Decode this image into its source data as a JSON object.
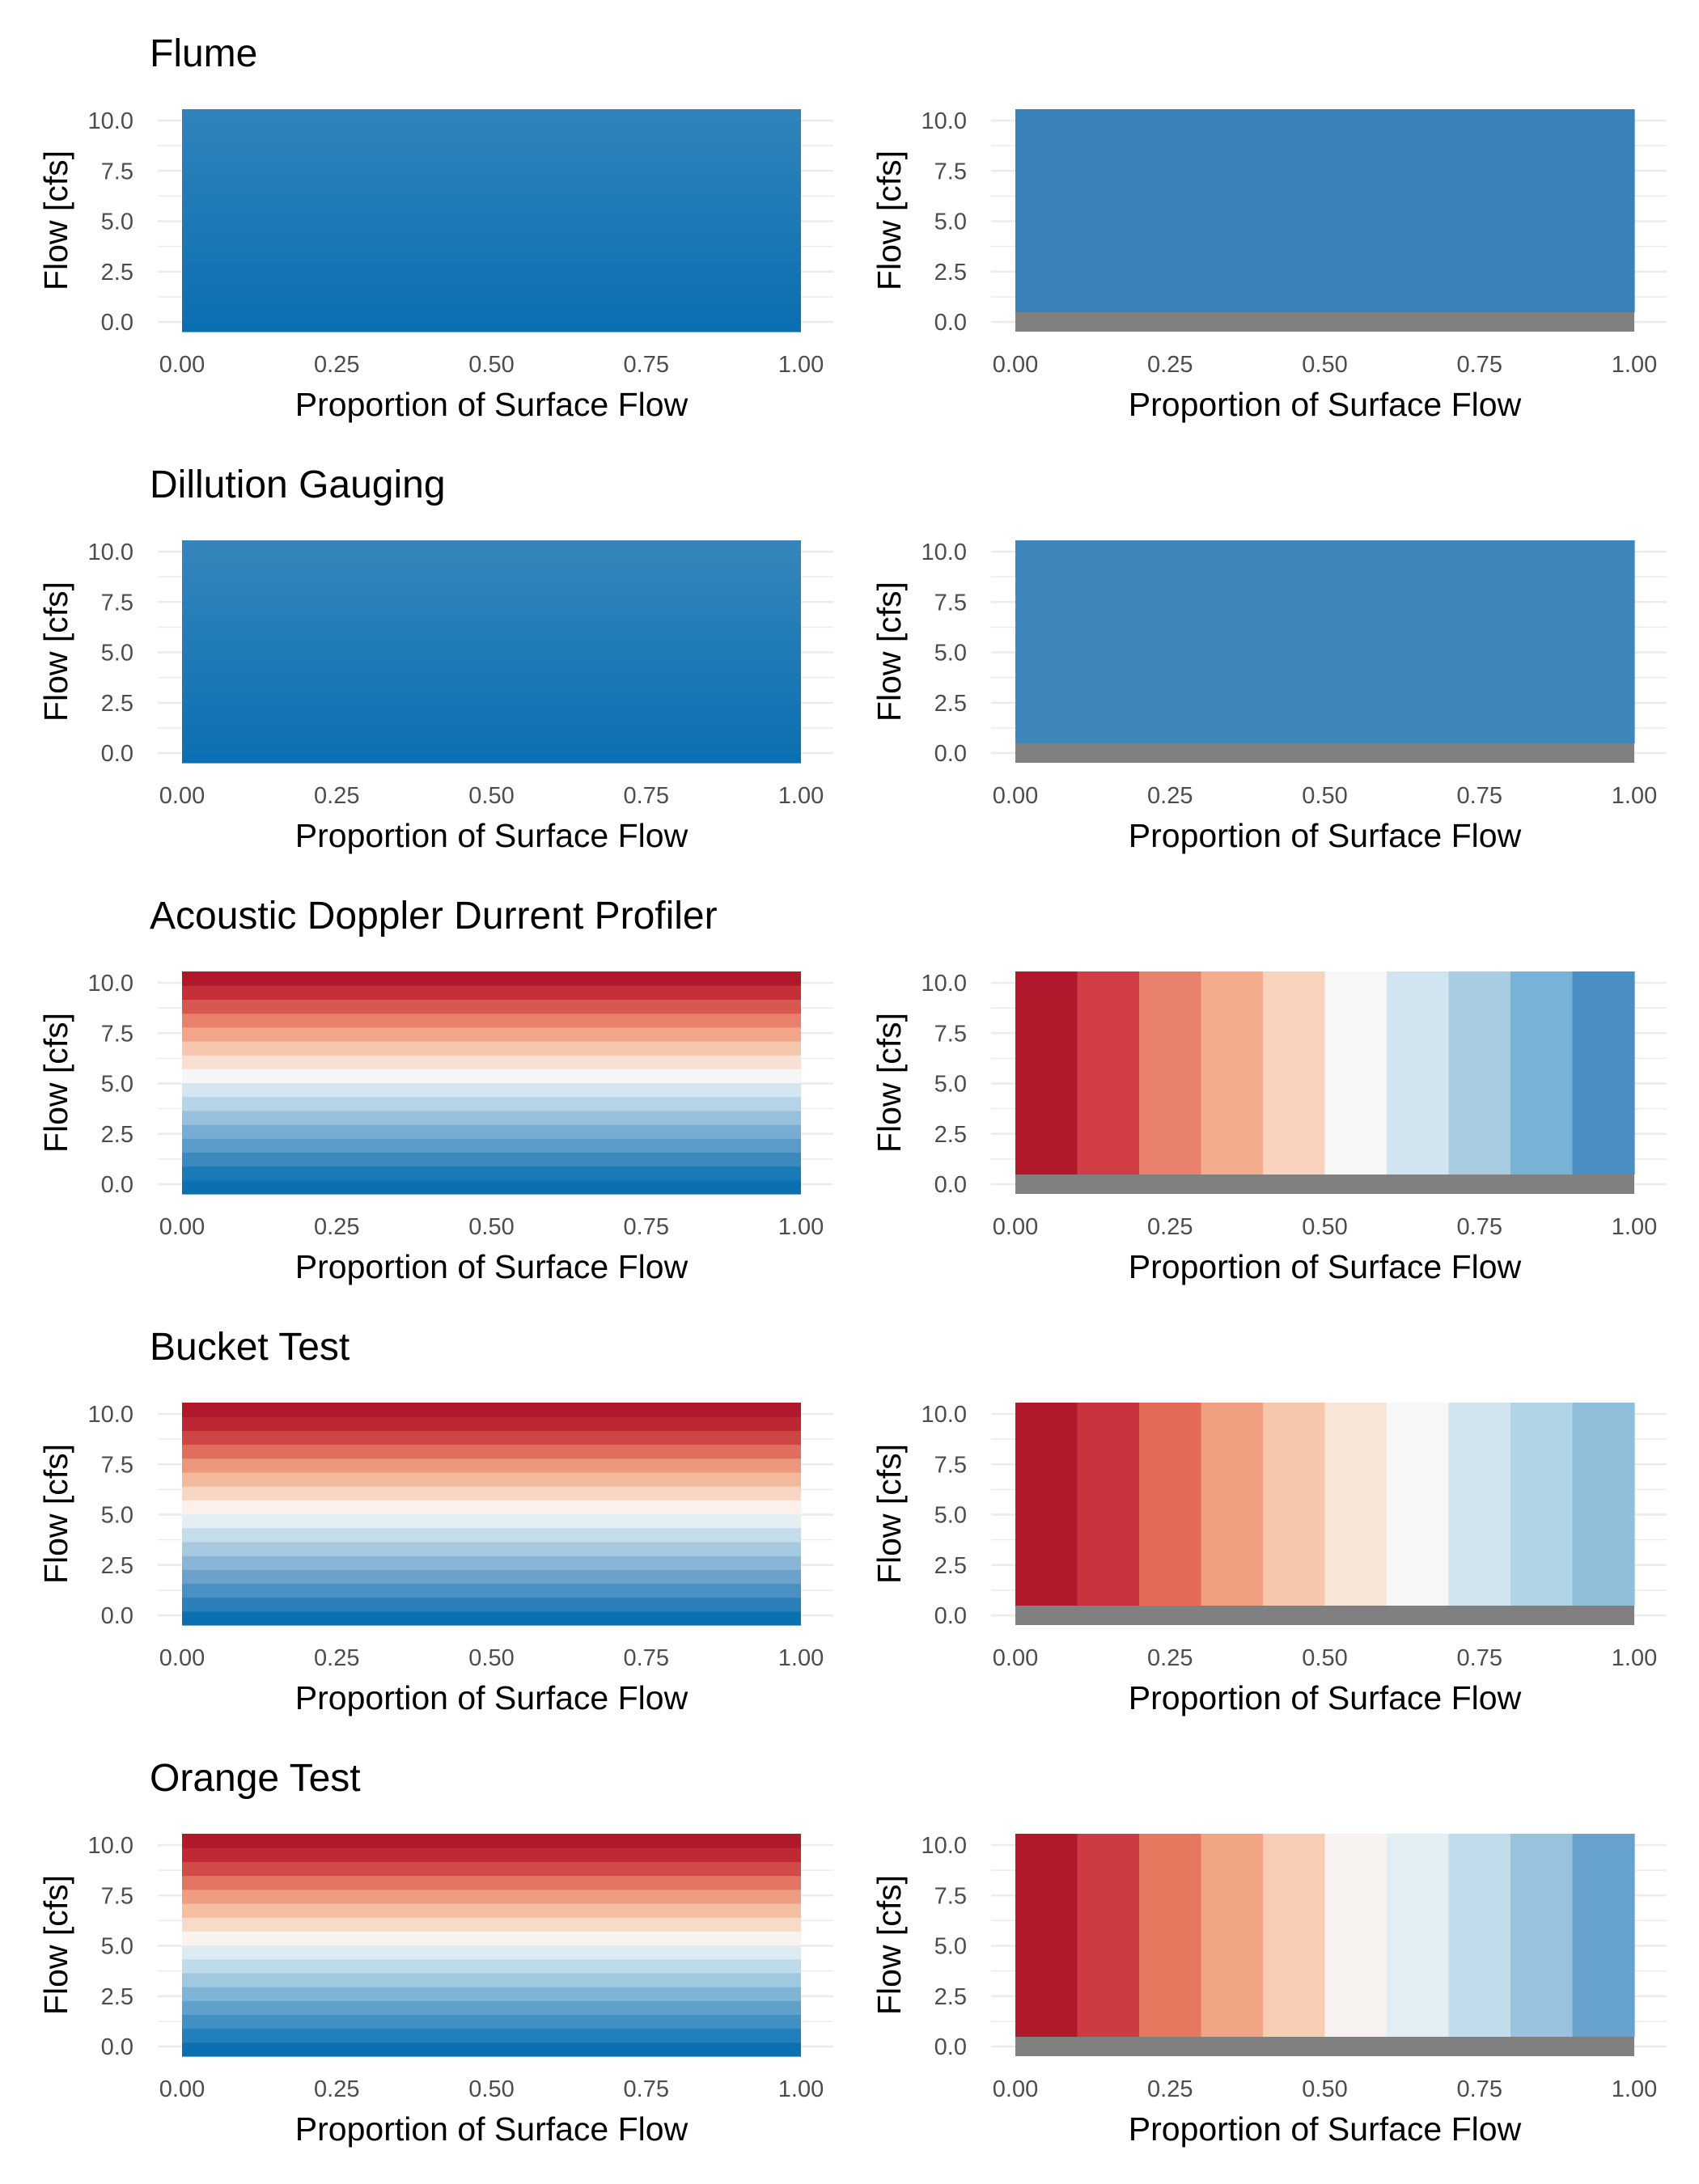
{
  "colors": {
    "heatmap_scale": [
      "#b2182b",
      "#ef8a62",
      "#fddbc7",
      "#f7f7f7",
      "#d1e5f0",
      "#67a9cf",
      "#2166ac"
    ],
    "na_color": "#808080",
    "grid_color": "#ebebeb",
    "background": "#ffffff"
  },
  "panel_labels": {
    "xlabel": "Proportion of Surface Flow",
    "ylabel": "Flow [cfs]"
  },
  "chart_data": [
    {
      "type": "heatmap",
      "title": "Flume",
      "xlabel": "Proportion of Surface Flow",
      "ylabel": "Flow [cfs]",
      "xlim": [
        0,
        1
      ],
      "ylim": [
        0,
        10
      ],
      "x_ticks": [
        "0.00",
        "0.25",
        "0.50",
        "0.75",
        "1.00"
      ],
      "y_ticks": [
        "0.0",
        "2.5",
        "5.0",
        "7.5",
        "10.0"
      ],
      "grid": true,
      "panels": [
        {
          "colors": [
            "#0b70b2",
            "#0c70b2",
            "#0e71b2",
            "#1072b3",
            "#1173b3",
            "#1374b4",
            "#1575b4",
            "#1776b4",
            "#1877b5",
            "#1a78b5",
            "#1c79b6",
            "#1e7ab6",
            "#207ab6",
            "#217bb7",
            "#237cb7",
            "#257db8",
            "#277eb8",
            "#297fb8",
            "#2b80b9",
            "#2d81b9",
            "#2e82ba",
            "#3083ba"
          ]
        },
        {
          "colors": [
            "#808080",
            "#3881bb",
            "#3881bb",
            "#3881bb",
            "#3881bb",
            "#3881bb",
            "#3881bb",
            "#3881bb",
            "#3881bb",
            "#3881bb",
            "#3881bb",
            "#3881bb",
            "#3881bb",
            "#3881bb",
            "#3881bb",
            "#3881bb",
            "#3881bb",
            "#3881bb",
            "#3881bb",
            "#3881bb",
            "#3881bb",
            "#3881bb"
          ]
        }
      ]
    },
    {
      "type": "heatmap",
      "title": "Dillution Gauging",
      "xlabel": "Proportion of Surface Flow",
      "ylabel": "Flow [cfs]",
      "xlim": [
        0,
        1
      ],
      "ylim": [
        0,
        10
      ],
      "x_ticks": [
        "0.00",
        "0.25",
        "0.50",
        "0.75",
        "1.00"
      ],
      "y_ticks": [
        "0.0",
        "2.5",
        "5.0",
        "7.5",
        "10.0"
      ],
      "grid": true,
      "panels": [
        {
          "colors": [
            "#0b70b2",
            "#0d71b2",
            "#0f72b3",
            "#1173b3",
            "#1374b4",
            "#1575b4",
            "#1776b4",
            "#1977b5",
            "#1b78b5",
            "#1d79b6",
            "#1f7ab6",
            "#217bb7",
            "#237cb7",
            "#257db7",
            "#277eb8",
            "#297fb8",
            "#2b80b9",
            "#2d81b9",
            "#2f82ba",
            "#3183ba",
            "#3384bb",
            "#3585bb"
          ]
        },
        {
          "colors": [
            "#808080",
            "#3f86bc",
            "#3f86bc",
            "#3f86bc",
            "#3f86bc",
            "#3f86bc",
            "#3f86bc",
            "#3f86bc",
            "#3f86bc",
            "#3f86bc",
            "#3f86bc",
            "#3f86bc",
            "#3f86bc",
            "#3f86bc",
            "#3f86bc",
            "#3f86bc",
            "#3f86bc",
            "#3f86bc",
            "#3f86bc",
            "#3f86bc",
            "#3f86bc",
            "#3f86bc"
          ]
        }
      ]
    },
    {
      "type": "heatmap",
      "title": "Acoustic Doppler Durrent Profiler",
      "xlabel": "Proportion of Surface Flow",
      "ylabel": "Flow [cfs]",
      "xlim": [
        0,
        1
      ],
      "ylim": [
        0,
        10
      ],
      "x_ticks": [
        "0.00",
        "0.25",
        "0.50",
        "0.75",
        "1.00"
      ],
      "y_ticks": [
        "0.0",
        "2.5",
        "5.0",
        "7.5",
        "10.0"
      ],
      "grid": true,
      "panels": [
        {
          "colors": [
            "#0b70b2",
            "#1a7ab7",
            "#3a8ac0",
            "#5a9bca",
            "#79acd3",
            "#98c0dd",
            "#b5d4e7",
            "#d4e6f0",
            "#f4f6f7",
            "#f9e0d4",
            "#f6c6ae",
            "#f2a689",
            "#e8806b",
            "#d65850",
            "#c42f38",
            "#b2182b"
          ]
        },
        {
          "colors": [
            "#808080",
            "#b2182b",
            "#d23c44",
            "#e8806b",
            "#f4ad8c",
            "#f9d2bd",
            "#f7f7f7",
            "#d1e5f0",
            "#a8cde3",
            "#78b2d6",
            "#4a8fc4"
          ]
        }
      ]
    },
    {
      "type": "heatmap",
      "title": "Bucket Test",
      "xlabel": "Proportion of Surface Flow",
      "ylabel": "Flow [cfs]",
      "xlim": [
        0,
        1
      ],
      "ylim": [
        0,
        10
      ],
      "x_ticks": [
        "0.00",
        "0.25",
        "0.50",
        "0.75",
        "1.00"
      ],
      "y_ticks": [
        "0.0",
        "2.5",
        "5.0",
        "7.5",
        "10.0"
      ],
      "grid": true,
      "panels": [
        {
          "colors": [
            "#0b70b2",
            "#2b80b9",
            "#4a91c3",
            "#6aa2cc",
            "#8ab5d6",
            "#a8cae1",
            "#c5ddea",
            "#e4eff4",
            "#fbf1ea",
            "#f8d6c3",
            "#f4b99b",
            "#ec977c",
            "#df6e5d",
            "#cd4545",
            "#bd2633",
            "#b2182b"
          ]
        },
        {
          "colors": [
            "#808080",
            "#b2182b",
            "#c9323c",
            "#e36a57",
            "#ef9f7f",
            "#f7c7ab",
            "#f9e4d8",
            "#f7f7f7",
            "#d1e5f0",
            "#b0d3e6",
            "#8fbfdb"
          ]
        }
      ]
    },
    {
      "type": "heatmap",
      "title": "Orange Test",
      "xlabel": "Proportion of Surface Flow",
      "ylabel": "Flow [cfs]",
      "xlim": [
        0,
        1
      ],
      "ylim": [
        0,
        10
      ],
      "x_ticks": [
        "0.00",
        "0.25",
        "0.50",
        "0.75",
        "1.00"
      ],
      "y_ticks": [
        "0.0",
        "2.5",
        "5.0",
        "7.5",
        "10.0"
      ],
      "grid": true,
      "panels": [
        {
          "colors": [
            "#0b70b2",
            "#2180bb",
            "#4090c3",
            "#60a1cc",
            "#80b4d6",
            "#a0c8e0",
            "#bfdbe9",
            "#ddecf3",
            "#f9f3ee",
            "#f8dac9",
            "#f4bea1",
            "#ee9d80",
            "#e27462",
            "#d04a48",
            "#bf2935",
            "#b2182b"
          ]
        },
        {
          "colors": [
            "#808080",
            "#b2182b",
            "#cd3a40",
            "#e6785f",
            "#f2a585",
            "#f9cdb4",
            "#f7f2ef",
            "#e3eef4",
            "#c2dceb",
            "#98c3de",
            "#66a2cc"
          ]
        }
      ]
    }
  ]
}
